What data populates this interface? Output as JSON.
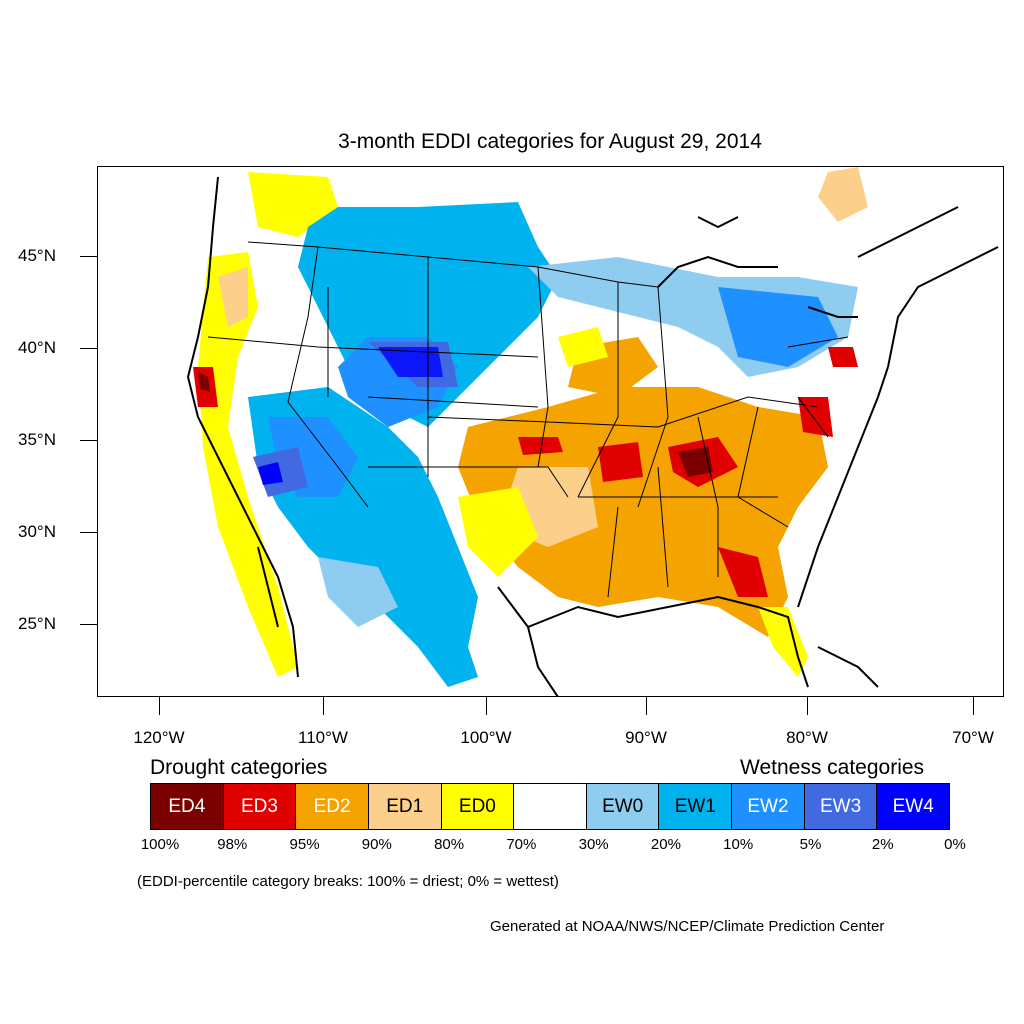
{
  "title": "3-month EDDI categories for August 29, 2014",
  "map": {
    "lat_labels": [
      "45°N",
      "40°N",
      "35°N",
      "30°N",
      "25°N"
    ],
    "lon_labels": [
      "120°W",
      "110°W",
      "100°W",
      "90°W",
      "80°W",
      "70°W"
    ]
  },
  "legend": {
    "drought_heading": "Drought categories",
    "wetness_heading": "Wetness categories",
    "categories": [
      {
        "label": "ED4",
        "color": "#7a0000",
        "text_color": "#ffffff"
      },
      {
        "label": "ED3",
        "color": "#e00000",
        "text_color": "#ffffff"
      },
      {
        "label": "ED2",
        "color": "#f5a300",
        "text_color": "#ffffff"
      },
      {
        "label": "ED1",
        "color": "#fcd08a",
        "text_color": "#000000"
      },
      {
        "label": "ED0",
        "color": "#ffff00",
        "text_color": "#000000"
      },
      {
        "label": "",
        "color": "#ffffff",
        "text_color": "#000000"
      },
      {
        "label": "EW0",
        "color": "#8ecdf0",
        "text_color": "#000000"
      },
      {
        "label": "EW1",
        "color": "#00b2ee",
        "text_color": "#000000"
      },
      {
        "label": "EW2",
        "color": "#1e90ff",
        "text_color": "#ffffff"
      },
      {
        "label": "EW3",
        "color": "#4169e1",
        "text_color": "#ffffff"
      },
      {
        "label": "EW4",
        "color": "#0000ff",
        "text_color": "#ffffff"
      }
    ],
    "percentiles": [
      "100%",
      "98%",
      "95%",
      "90%",
      "80%",
      "70%",
      "30%",
      "20%",
      "10%",
      "5%",
      "2%",
      "0%"
    ]
  },
  "note": "(EDDI-percentile category breaks: 100% = driest; 0% = wettest)",
  "credit": "Generated at NOAA/NWS/NCEP/Climate Prediction Center"
}
